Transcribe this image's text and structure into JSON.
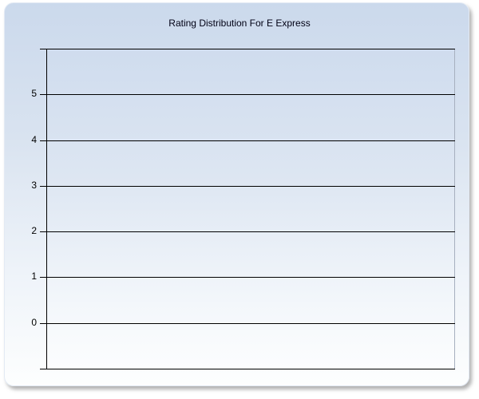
{
  "chart_data": {
    "type": "bar",
    "title": "Rating Distribution For E Express",
    "categories": [],
    "series": [],
    "xlabel": "",
    "ylabel": "",
    "yticks": [
      5,
      4,
      3,
      2,
      1,
      0
    ],
    "ylim": [
      -1,
      6
    ],
    "grid": true,
    "legend": false
  },
  "colors": {
    "panel_gradient_top": "#cbd9ec",
    "panel_gradient_bottom": "#fdfefe",
    "plot_gradient_top": "#cfdcee",
    "plot_gradient_bottom": "#fcfdfe",
    "gridline": "#000000",
    "axis_line": "#000000",
    "plot_right_border": "#a7b0bf",
    "title_text": "#000014",
    "tick_text": "#000000",
    "shadow": "#7d7d7d"
  }
}
